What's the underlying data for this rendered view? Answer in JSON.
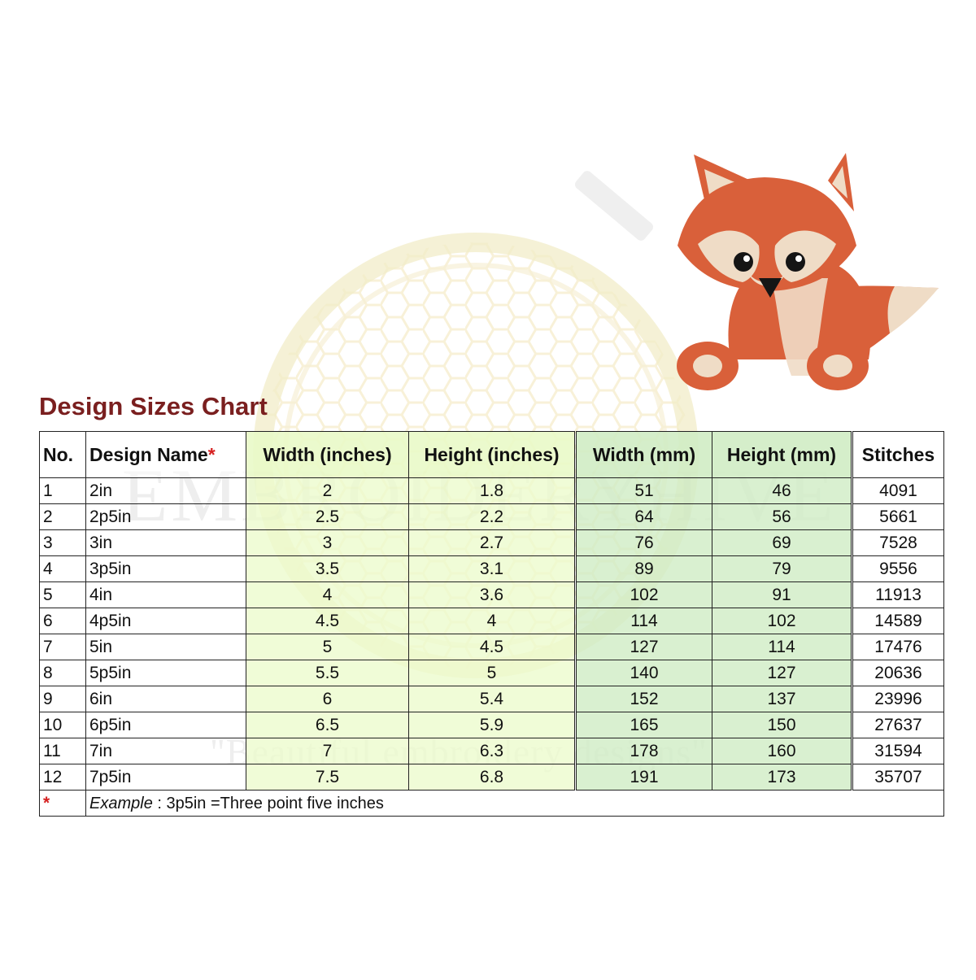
{
  "watermark": {
    "brand": "EMBROIDERYHIVE",
    "tagline": "\"Beautiful embroidery designs\""
  },
  "illustration": {
    "subject": "fox-icon"
  },
  "title": "Design Sizes Chart",
  "colors": {
    "title": "#7a1f1f",
    "inches_columns": "#ecfbcc",
    "mm_columns": "#d0ecc4",
    "asterisk": "#d62020"
  },
  "table": {
    "headers": {
      "no": "No.",
      "name": "Design Name",
      "name_mark": "*",
      "width_in": "Width (inches)",
      "height_in": "Height (inches)",
      "width_mm": "Width (mm)",
      "height_mm": "Height (mm)",
      "stitches": "Stitches"
    },
    "rows": [
      {
        "no": "1",
        "name": "2in",
        "width_in": "2",
        "height_in": "1.8",
        "width_mm": "51",
        "height_mm": "46",
        "stitches": "4091"
      },
      {
        "no": "2",
        "name": "2p5in",
        "width_in": "2.5",
        "height_in": "2.2",
        "width_mm": "64",
        "height_mm": "56",
        "stitches": "5661"
      },
      {
        "no": "3",
        "name": "3in",
        "width_in": "3",
        "height_in": "2.7",
        "width_mm": "76",
        "height_mm": "69",
        "stitches": "7528"
      },
      {
        "no": "4",
        "name": "3p5in",
        "width_in": "3.5",
        "height_in": "3.1",
        "width_mm": "89",
        "height_mm": "79",
        "stitches": "9556"
      },
      {
        "no": "5",
        "name": "4in",
        "width_in": "4",
        "height_in": "3.6",
        "width_mm": "102",
        "height_mm": "91",
        "stitches": "11913"
      },
      {
        "no": "6",
        "name": "4p5in",
        "width_in": "4.5",
        "height_in": "4",
        "width_mm": "114",
        "height_mm": "102",
        "stitches": "14589"
      },
      {
        "no": "7",
        "name": "5in",
        "width_in": "5",
        "height_in": "4.5",
        "width_mm": "127",
        "height_mm": "114",
        "stitches": "17476"
      },
      {
        "no": "8",
        "name": "5p5in",
        "width_in": "5.5",
        "height_in": "5",
        "width_mm": "140",
        "height_mm": "127",
        "stitches": "20636"
      },
      {
        "no": "9",
        "name": "6in",
        "width_in": "6",
        "height_in": "5.4",
        "width_mm": "152",
        "height_mm": "137",
        "stitches": "23996"
      },
      {
        "no": "10",
        "name": "6p5in",
        "width_in": "6.5",
        "height_in": "5.9",
        "width_mm": "165",
        "height_mm": "150",
        "stitches": "27637"
      },
      {
        "no": "11",
        "name": "7in",
        "width_in": "7",
        "height_in": "6.3",
        "width_mm": "178",
        "height_mm": "160",
        "stitches": "31594"
      },
      {
        "no": "12",
        "name": "7p5in",
        "width_in": "7.5",
        "height_in": "6.8",
        "width_mm": "191",
        "height_mm": "173",
        "stitches": "35707"
      }
    ],
    "note": {
      "mark": "*",
      "label": "Example",
      "separator": " : ",
      "text": "3p5in =Three point five inches"
    }
  }
}
